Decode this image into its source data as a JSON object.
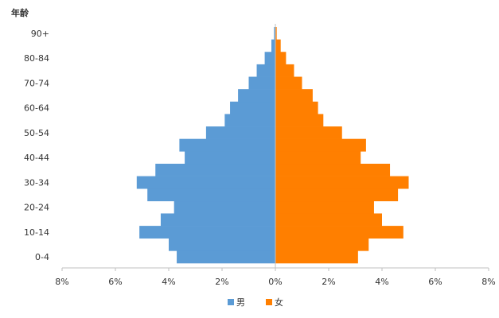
{
  "chart_data": {
    "type": "bar",
    "orientation": "horizontal",
    "variant": "population-pyramid",
    "ylabel": "年龄",
    "categories": [
      "0-4",
      "5-9",
      "10-14",
      "15-19",
      "20-24",
      "25-29",
      "30-34",
      "35-39",
      "40-44",
      "45-49",
      "50-54",
      "55-59",
      "60-64",
      "65-69",
      "70-74",
      "75-79",
      "80-84",
      "85-89",
      "90+"
    ],
    "category_ticks_shown": [
      "0-4",
      "10-14",
      "20-24",
      "30-34",
      "40-44",
      "50-54",
      "60-64",
      "70-74",
      "80-84",
      "90+"
    ],
    "series": [
      {
        "name": "男",
        "color": "#5b9bd5",
        "side": "left",
        "values": [
          3.7,
          4.0,
          5.1,
          4.3,
          3.8,
          4.8,
          5.2,
          4.5,
          3.4,
          3.6,
          2.6,
          1.9,
          1.7,
          1.4,
          1.0,
          0.7,
          0.4,
          0.15,
          0.05
        ]
      },
      {
        "name": "女",
        "color": "#ff7f00",
        "side": "right",
        "values": [
          3.1,
          3.5,
          4.8,
          4.0,
          3.7,
          4.6,
          5.0,
          4.3,
          3.2,
          3.4,
          2.5,
          1.8,
          1.6,
          1.4,
          1.0,
          0.7,
          0.4,
          0.2,
          0.05
        ]
      }
    ],
    "xticks": [
      "8%",
      "6%",
      "4%",
      "2%",
      "0%",
      "2%",
      "4%",
      "6%",
      "8%"
    ],
    "xlim": [
      -8,
      8
    ],
    "grid": false,
    "legend": "bottom-center"
  }
}
